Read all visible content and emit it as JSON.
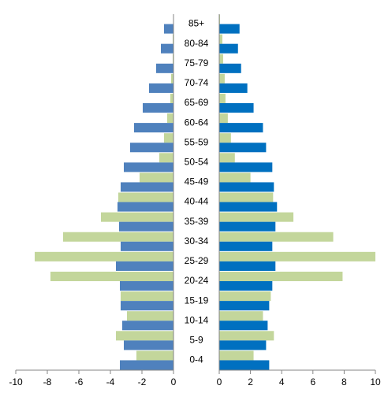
{
  "chart_data": {
    "type": "bar",
    "orientation": "horizontal",
    "categories": [
      "0-4",
      "5-9",
      "10-14",
      "15-19",
      "20-24",
      "25-29",
      "30-34",
      "35-39",
      "40-44",
      "45-49",
      "50-54",
      "55-59",
      "60-64",
      "65-69",
      "70-74",
      "75-79",
      "80-84",
      "85+"
    ],
    "series": [
      {
        "color": "#c3d69b",
        "axis": "x",
        "values": [
          -2.35,
          -3.65,
          -2.95,
          -3.35,
          -7.8,
          -8.8,
          -7.0,
          -4.6,
          -3.5,
          -2.15,
          -0.9,
          -0.6,
          -0.4,
          -0.2,
          -0.15,
          -0.05,
          -0.05,
          0
        ]
      },
      {
        "color": "#4f81bd",
        "axis": "x",
        "values": [
          -3.4,
          -3.15,
          -3.25,
          -3.35,
          -3.4,
          -3.65,
          -3.35,
          -3.45,
          -3.55,
          -3.35,
          -3.15,
          -2.75,
          -2.5,
          -1.95,
          -1.55,
          -1.1,
          -0.8,
          -0.6
        ]
      },
      {
        "color": "#c3d69b",
        "axis": "x2",
        "values": [
          2.2,
          3.5,
          2.8,
          3.3,
          7.9,
          10,
          7.3,
          4.75,
          3.45,
          2.0,
          1.0,
          0.75,
          0.55,
          0.4,
          0.35,
          0.25,
          0.2,
          0.05
        ]
      },
      {
        "color": "#0070c0",
        "axis": "x2",
        "values": [
          3.2,
          3.0,
          3.1,
          3.2,
          3.4,
          3.6,
          3.4,
          3.6,
          3.7,
          3.5,
          3.4,
          3.0,
          2.8,
          2.2,
          1.8,
          1.4,
          1.2,
          1.3
        ]
      }
    ],
    "xlim": [
      -10,
      0
    ],
    "xticks": [
      -10,
      -8,
      -6,
      -4,
      -2,
      0
    ],
    "x2lim": [
      0,
      10
    ],
    "x2ticks": [
      0,
      2,
      4,
      6,
      8,
      10
    ]
  }
}
